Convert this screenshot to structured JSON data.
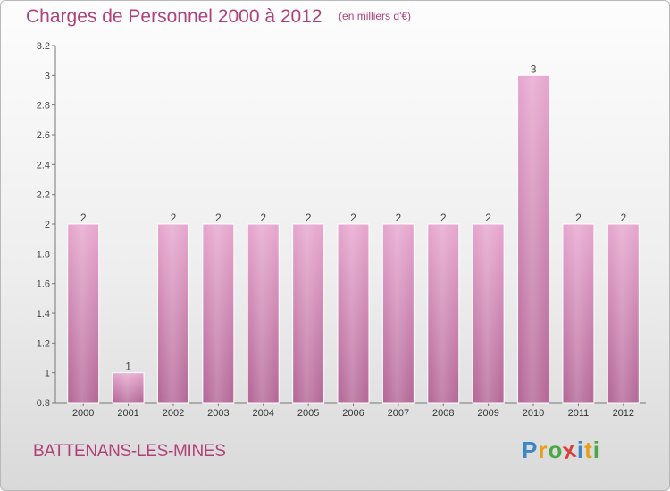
{
  "chart_data": {
    "type": "bar",
    "title": "Charges de Personnel 2000 à 2012",
    "subtitle": "(en milliers d'€)",
    "categories": [
      "2000",
      "2001",
      "2002",
      "2003",
      "2004",
      "2005",
      "2006",
      "2007",
      "2008",
      "2009",
      "2010",
      "2011",
      "2012"
    ],
    "values": [
      2,
      1,
      2,
      2,
      2,
      2,
      2,
      2,
      2,
      2,
      3,
      2,
      2
    ],
    "data_labels": [
      "2",
      "1",
      "2",
      "2",
      "2",
      "2",
      "2",
      "2",
      "2",
      "2",
      "3",
      "2",
      "2"
    ],
    "ylim": [
      0.8,
      3.2
    ],
    "yticks": [
      "0.8",
      "1",
      "1.2",
      "1.4",
      "1.6",
      "1.8",
      "2",
      "2.2",
      "2.4",
      "2.6",
      "2.8",
      "3",
      "3.2"
    ],
    "xlabel": "",
    "ylabel": "",
    "grid": false,
    "bar_color": "#cc7fae",
    "title_color": "#b0407a"
  },
  "footer": {
    "commune": "BATTENANS-LES-MINES",
    "brand": [
      "P",
      "r",
      "o",
      "x",
      "i",
      "t",
      "i"
    ],
    "brand_colors": [
      "#3d86c6",
      "#e8a01c",
      "#4aa84a",
      "#d93d3d",
      "#3d86c6",
      "#e8a01c",
      "#4aa84a"
    ]
  }
}
